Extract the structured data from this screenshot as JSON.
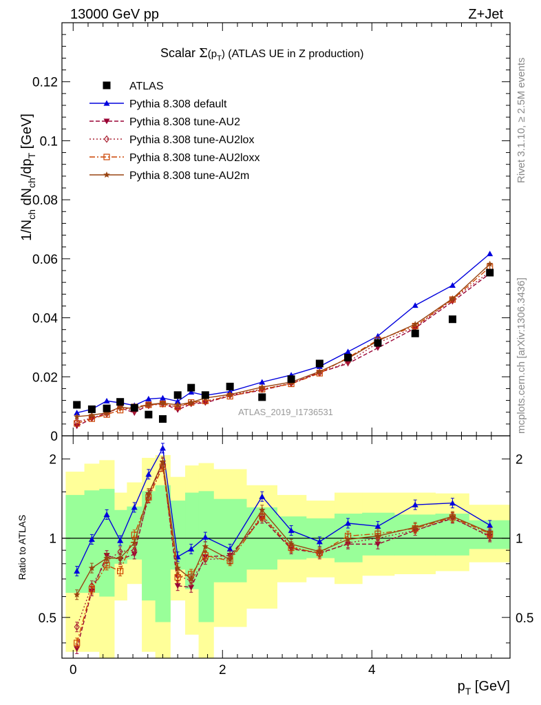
{
  "header": {
    "left": "13000 GeV pp",
    "right": "Z+Jet"
  },
  "side": {
    "rivet": "Rivet 3.1.10, ≥ 2.5M events",
    "mcplots": "mcplots.cern.ch [arXiv:1306.3436]"
  },
  "watermark": "ATLAS_2019_I1736531",
  "chart_data": [
    {
      "type": "line",
      "title": "Scalar Σ(p_T) (ATLAS UE in Z production)",
      "title_main": "Scalar ",
      "title_sigma": "Σ",
      "title_p": "(p",
      "title_sub": "T",
      "title_close": ")",
      "title_rest": " (ATLAS UE in Z production)",
      "ylabel": "1/N_ch dN_ch/dp_T [GeV]",
      "ylabel_a": "1/N",
      "ylabel_b": "ch",
      "ylabel_c": " dN",
      "ylabel_d": "ch",
      "ylabel_e": "/dp",
      "ylabel_f": "T",
      "ylabel_g": " [GeV]",
      "xlim": [
        -0.15,
        5.85
      ],
      "ylim": [
        0,
        0.14
      ],
      "yticks": [
        0,
        0.02,
        0.04,
        0.06,
        0.08,
        0.1,
        0.12
      ],
      "ytick_labels": [
        "0",
        "0.02",
        "0.04",
        "0.06",
        "0.08",
        "0.1",
        "0.12"
      ],
      "x": [
        0.05,
        0.25,
        0.45,
        0.63,
        0.82,
        1.01,
        1.2,
        1.4,
        1.58,
        1.77,
        2.1,
        2.53,
        2.92,
        3.3,
        3.68,
        4.08,
        4.58,
        5.08,
        5.58
      ],
      "data": {
        "name": "ATLAS",
        "values": [
          0.0105,
          0.009,
          0.0093,
          0.0115,
          0.0095,
          0.0072,
          0.0057,
          0.0138,
          0.0163,
          0.0138,
          0.0167,
          0.0131,
          0.0192,
          0.0245,
          0.0265,
          0.0315,
          0.0347,
          0.0395,
          0.0553
        ]
      },
      "series": [
        {
          "name": "Pythia 8.308 default",
          "color": "#0000dd",
          "dash": "",
          "marker": "triangle-up",
          "values": [
            0.0078,
            0.009,
            0.0118,
            0.0112,
            0.0103,
            0.0125,
            0.0128,
            0.0117,
            0.0148,
            0.0137,
            0.015,
            0.0182,
            0.0206,
            0.0235,
            0.0285,
            0.0338,
            0.0442,
            0.051,
            0.0617
          ]
        },
        {
          "name": "Pythia 8.308 tune-AU2",
          "color": "#990033",
          "dash": "6,3",
          "marker": "triangle-down",
          "values": [
            0.0033,
            0.0058,
            0.0078,
            0.0095,
            0.0078,
            0.0105,
            0.011,
            0.0088,
            0.0108,
            0.0112,
            0.0135,
            0.0155,
            0.0177,
            0.0215,
            0.0245,
            0.0298,
            0.0365,
            0.0455,
            0.055
          ]
        },
        {
          "name": "Pythia 8.308 tune-AU2lox",
          "color": "#aa2233",
          "dash": "2,3",
          "marker": "diamond-open",
          "values": [
            0.0048,
            0.006,
            0.0075,
            0.0098,
            0.0085,
            0.0103,
            0.0108,
            0.0098,
            0.011,
            0.0115,
            0.0138,
            0.0158,
            0.0178,
            0.0213,
            0.025,
            0.0315,
            0.0368,
            0.0462,
            0.0556
          ]
        },
        {
          "name": "Pythia 8.308 tune-AU2loxx",
          "color": "#cc4400",
          "dash": "8,3,2,3",
          "marker": "square-open",
          "values": [
            0.0042,
            0.0058,
            0.0072,
            0.0087,
            0.0098,
            0.0105,
            0.0108,
            0.0098,
            0.0113,
            0.0118,
            0.0134,
            0.0158,
            0.0176,
            0.0212,
            0.0265,
            0.0325,
            0.0372,
            0.0462,
            0.0572
          ]
        },
        {
          "name": "Pythia 8.308 tune-AU2m",
          "color": "#994411",
          "dash": "",
          "marker": "star",
          "values": [
            0.0065,
            0.007,
            0.0078,
            0.0097,
            0.0092,
            0.0106,
            0.0111,
            0.0105,
            0.0113,
            0.0128,
            0.014,
            0.0165,
            0.0182,
            0.0218,
            0.0262,
            0.0322,
            0.0378,
            0.0465,
            0.0582
          ]
        }
      ]
    },
    {
      "type": "line",
      "title": "",
      "ylabel": "Ratio to ATLAS",
      "xlabel": "p_T [GeV]",
      "xlabel_p": "p",
      "xlabel_sub": "T",
      "xlabel_unit": " [GeV]",
      "yscale": "log",
      "xlim": [
        -0.15,
        5.85
      ],
      "ylim": [
        0.35,
        2.45
      ],
      "yticks": [
        0.5,
        1,
        2
      ],
      "ytick_labels": [
        "0.5",
        "1",
        "2"
      ],
      "xticks": [
        0,
        2,
        4
      ],
      "xtick_labels": [
        "0",
        "2",
        "4"
      ],
      "x_edges": [
        -0.1,
        0.15,
        0.35,
        0.55,
        0.72,
        0.92,
        1.1,
        1.3,
        1.5,
        1.68,
        1.88,
        2.32,
        2.73,
        3.12,
        3.5,
        3.87,
        4.3,
        4.85,
        5.3,
        5.85
      ],
      "band_green_lo": [
        0.62,
        0.62,
        0.6,
        0.8,
        0.83,
        0.58,
        0.48,
        0.76,
        0.64,
        0.48,
        0.68,
        0.76,
        0.83,
        0.84,
        0.81,
        0.86,
        0.86,
        0.86,
        0.91
      ],
      "band_green_hi": [
        1.46,
        1.52,
        1.54,
        1.28,
        1.32,
        1.51,
        1.59,
        1.39,
        1.49,
        1.51,
        1.41,
        1.31,
        1.21,
        1.19,
        1.24,
        1.25,
        1.23,
        1.24,
        1.17
      ],
      "band_yellow_lo": [
        0.37,
        0.37,
        0.35,
        0.58,
        0.67,
        0.37,
        0.25,
        0.58,
        0.43,
        0.3,
        0.46,
        0.54,
        0.68,
        0.71,
        0.67,
        0.72,
        0.73,
        0.75,
        0.81
      ],
      "band_yellow_hi": [
        1.79,
        1.92,
        1.98,
        1.49,
        1.63,
        2.02,
        2.07,
        1.71,
        1.89,
        1.93,
        1.83,
        1.59,
        1.46,
        1.39,
        1.49,
        1.49,
        1.49,
        1.48,
        1.34
      ],
      "reference_line": 1,
      "series": [
        {
          "name": "Pythia 8.308 default",
          "values": [
            0.75,
            0.99,
            1.23,
            0.98,
            1.31,
            1.75,
            2.2,
            0.85,
            0.91,
            1.01,
            0.91,
            1.44,
            1.07,
            0.97,
            1.14,
            1.11,
            1.34,
            1.36,
            1.12
          ]
        },
        {
          "name": "Pythia 8.308 tune-AU2",
          "values": [
            0.38,
            0.63,
            0.86,
            0.83,
            0.87,
            1.46,
            1.93,
            0.66,
            0.65,
            0.85,
            0.86,
            1.19,
            0.91,
            0.88,
            0.95,
            0.95,
            1.07,
            1.19,
            1.02
          ]
        },
        {
          "name": "Pythia 8.308 tune-AU2lox",
          "values": [
            0.46,
            0.66,
            0.82,
            0.89,
            0.9,
            1.42,
            1.88,
            0.72,
            0.69,
            0.83,
            0.84,
            1.22,
            0.93,
            0.87,
            0.96,
            1.0,
            1.07,
            1.2,
            1.01
          ]
        },
        {
          "name": "Pythia 8.308 tune-AU2loxx",
          "values": [
            0.4,
            0.64,
            0.79,
            0.75,
            1.03,
            1.43,
            1.87,
            0.71,
            0.73,
            0.86,
            0.82,
            1.21,
            0.92,
            0.88,
            1.02,
            1.04,
            1.09,
            1.2,
            1.04
          ]
        },
        {
          "name": "Pythia 8.308 tune-AU2m",
          "values": [
            0.61,
            0.77,
            0.84,
            0.84,
            0.96,
            1.48,
            1.95,
            0.77,
            0.7,
            0.93,
            0.83,
            1.28,
            0.95,
            0.89,
            0.99,
            1.02,
            1.1,
            1.21,
            1.05
          ]
        }
      ]
    }
  ]
}
